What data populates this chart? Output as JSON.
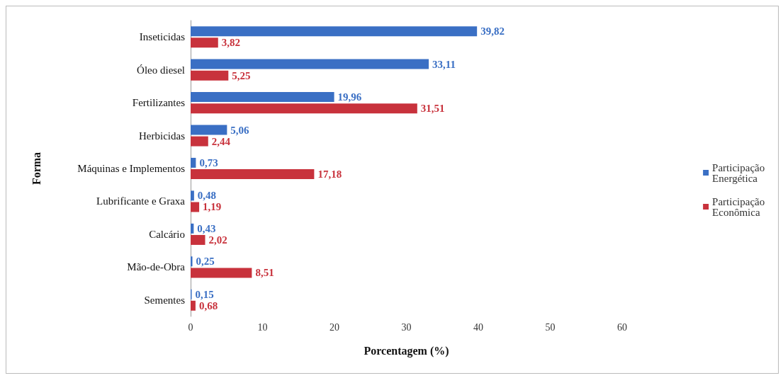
{
  "chart_data": {
    "type": "bar",
    "orientation": "horizontal",
    "xlabel": "Porcentagem (%)",
    "ylabel": "Forma",
    "categories": [
      "Inseticidas",
      "Óleo diesel",
      "Fertilizantes",
      "Herbicidas",
      "Máquinas e Implementos",
      "Lubrificante e Graxa",
      "Calcário",
      "Mão-de-Obra",
      "Sementes"
    ],
    "series": [
      {
        "name": "Participação Energética",
        "color": "#3a6fc4",
        "values": [
          39.82,
          33.11,
          19.96,
          5.06,
          0.73,
          0.48,
          0.43,
          0.25,
          0.15
        ],
        "value_labels": [
          "39,82",
          "33,11",
          "19,96",
          "5,06",
          "0,73",
          "0,48",
          "0,43",
          "0,25",
          "0,15"
        ]
      },
      {
        "name": "Participação Econômica",
        "color": "#c8323c",
        "values": [
          3.82,
          5.25,
          31.51,
          2.44,
          17.18,
          1.19,
          2.02,
          8.51,
          0.68
        ],
        "value_labels": [
          "3,82",
          "5,25",
          "31,51",
          "2,44",
          "17,18",
          "1,19",
          "2,02",
          "8,51",
          "0,68"
        ]
      }
    ],
    "xlim": [
      0,
      60
    ],
    "xticks": [
      0,
      10,
      20,
      30,
      40,
      50,
      60
    ],
    "grid": false,
    "legend": "right"
  }
}
